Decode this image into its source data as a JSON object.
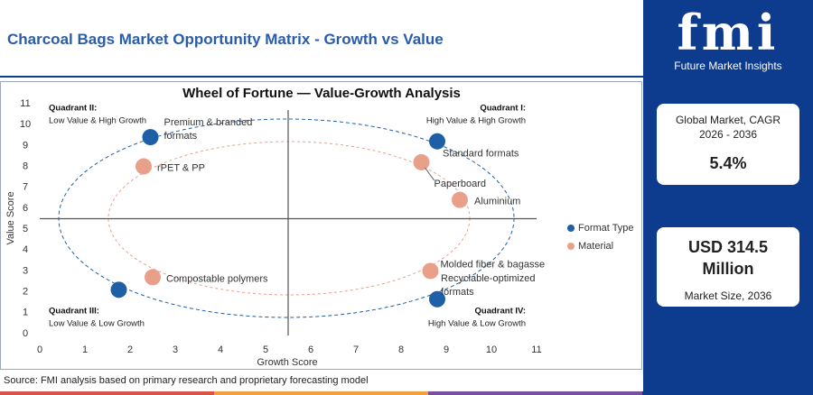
{
  "header": {
    "title": "Charcoal Bags Market Opportunity Matrix - Growth vs Value"
  },
  "chart_data": {
    "type": "scatter",
    "title": "Wheel of Fortune — Value-Growth Analysis",
    "xlabel": "Growth Score",
    "ylabel": "Value Score",
    "xlim": [
      0,
      11
    ],
    "ylim": [
      0,
      11
    ],
    "xticks": [
      0,
      1,
      2,
      3,
      4,
      5,
      6,
      7,
      8,
      9,
      10,
      11
    ],
    "yticks": [
      0,
      1,
      2,
      3,
      4,
      5,
      6,
      7,
      8,
      9,
      10,
      11
    ],
    "legend": "right",
    "series": [
      {
        "name": "Format Type",
        "color": "#1f5fa6",
        "x": [
          2.45,
          8.8,
          1.75,
          8.8
        ],
        "values": [
          9.4,
          9.2,
          2.1,
          1.65
        ],
        "labels": [
          "Premium & branded formats",
          "Standard formats",
          null,
          "Recyclable-optimized formats"
        ]
      },
      {
        "name": "Material",
        "color": "#e8a08a",
        "x": [
          2.3,
          8.45,
          9.3,
          8.65,
          2.5
        ],
        "values": [
          8.0,
          8.2,
          6.4,
          3.0,
          2.7
        ],
        "labels": [
          "rPET & PP",
          "Paperboard",
          "Aluminium",
          "Molded fiber & bagasse",
          "Compostable polymers"
        ]
      }
    ],
    "annotations": [
      {
        "title": "Quadrant II:",
        "text": "Low Value & High Growth"
      },
      {
        "title": "Quadrant I:",
        "text": "High Value & High Growth"
      },
      {
        "title": "Quadrant III:",
        "text": "Low Value & Low Growth"
      },
      {
        "title": "Quadrant IV:",
        "text": "High Value & Low Growth"
      }
    ]
  },
  "sidebar": {
    "logo": "fmi",
    "logo_sub": "Future Market Insights",
    "cards": [
      {
        "label": "Global Market, CAGR 2026 - 2036",
        "value": "5.4%"
      },
      {
        "value": "USD 314.5 Million",
        "label": "Market Size, 2036"
      }
    ]
  },
  "source": "Source: FMI analysis based on primary research and proprietary forecasting model"
}
